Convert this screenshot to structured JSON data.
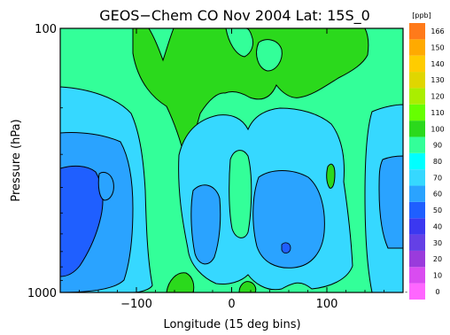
{
  "chart_data": {
    "type": "heatmap",
    "subtype": "filled-contour",
    "title": "GEOS−Chem CO Nov 2004 Lat: 15S_0",
    "xlabel": "Longitude (15 deg bins)",
    "ylabel": "Pressure (hPa)",
    "xlim": [
      -180,
      180
    ],
    "ylim": [
      1000,
      100
    ],
    "y_scale": "log",
    "x_ticks": [
      "−100",
      "0",
      "100"
    ],
    "x_tick_values": [
      -100,
      0,
      100
    ],
    "y_ticks": [
      "100",
      "1000"
    ],
    "y_tick_values": [
      100,
      1000
    ],
    "colorbar": {
      "unit": "[ppb]",
      "levels": [
        0,
        10,
        20,
        30,
        40,
        50,
        60,
        70,
        80,
        90,
        100,
        110,
        120,
        130,
        140,
        150,
        166
      ],
      "tick_labels": [
        "0",
        "10",
        "20",
        "30",
        "40",
        "50",
        "60",
        "70",
        "80",
        "90",
        "100",
        "110",
        "120",
        "130",
        "140",
        "150",
        "166"
      ],
      "colors": [
        "#ff66ff",
        "#d94cf0",
        "#9a3bdc",
        "#6440e6",
        "#3b38f0",
        "#1f5fff",
        "#2aa3ff",
        "#36d8ff",
        "#00ffff",
        "#33ff99",
        "#2bd91c",
        "#66ff00",
        "#aaee00",
        "#e0d600",
        "#ffcc00",
        "#ffaa00",
        "#ff7a1a"
      ]
    },
    "field_description_ppb": {
      "upper_troposphere": "90-100 ppb over -130 to 110 deg, 80-90 ppb elsewhere",
      "mid_troposphere_west": "50-70 ppb near -180 to -130 deg",
      "mid_troposphere_east": "60-70 ppb near 160-180 deg",
      "lower_troposphere": "70-90 ppb, 90-100 ppb patches near -60 and 15 deg at the surface"
    },
    "contour_bands": [
      {
        "level": 80,
        "color": "#33ff99"
      },
      {
        "level": 90,
        "color": "#2bd91c"
      },
      {
        "level": 70,
        "color": "#36d8ff"
      },
      {
        "level": 60,
        "color": "#2aa3ff"
      },
      {
        "level": 50,
        "color": "#1f5fff"
      }
    ]
  }
}
